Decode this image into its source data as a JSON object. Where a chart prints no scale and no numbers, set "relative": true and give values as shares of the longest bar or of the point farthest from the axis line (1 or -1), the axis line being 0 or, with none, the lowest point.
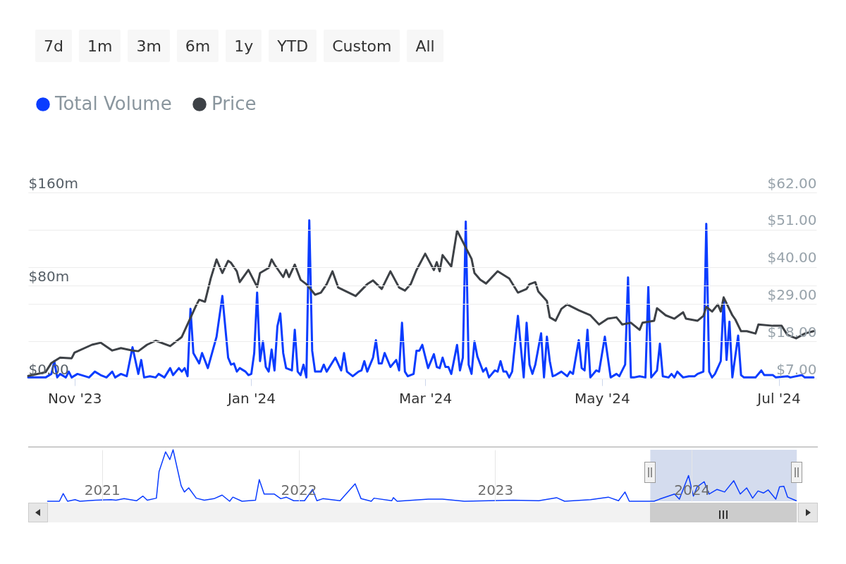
{
  "chart_data": [
    {
      "type": "line",
      "annotations": [
        "7d",
        "1m",
        "3m",
        "6m",
        "1y",
        "YTD",
        "Custom",
        "All"
      ],
      "xlim": [
        "2023-10-16",
        "2024-07-14"
      ],
      "xticks": [
        {
          "value": "2023-11-01",
          "label": "Nov '23"
        },
        {
          "value": "2024-01-01",
          "label": "Jan '24"
        },
        {
          "value": "2024-03-01",
          "label": "Mar '24"
        },
        {
          "value": "2024-05-01",
          "label": "May '24"
        },
        {
          "value": "2024-07-01",
          "label": "Jul '24"
        }
      ],
      "ylim": [
        0,
        160
      ],
      "yticks": [
        {
          "value": 0,
          "label": "$0.00"
        },
        {
          "value": 80,
          "label": "$80m"
        },
        {
          "value": 160,
          "label": "$160m"
        }
      ],
      "y2lim": [
        7,
        62
      ],
      "y2ticks": [
        {
          "value": 7,
          "label": "$7.00"
        },
        {
          "value": 18,
          "label": "$18.00"
        },
        {
          "value": 29,
          "label": "$29.00"
        },
        {
          "value": 40,
          "label": "$40.00"
        },
        {
          "value": 51,
          "label": "$51.00"
        },
        {
          "value": 62,
          "label": "$62.00"
        }
      ],
      "grid": "y",
      "legend": "top left",
      "series": [
        {
          "name": "Total Volume",
          "color": "#0a3cff",
          "x": [
            "2023-10-16",
            "2023-10-22",
            "2023-10-24",
            "2023-10-25",
            "2023-10-26",
            "2023-10-27",
            "2023-10-29",
            "2023-10-30",
            "2023-10-31",
            "2023-11-02",
            "2023-11-06",
            "2023-11-08",
            "2023-11-10",
            "2023-11-12",
            "2023-11-14",
            "2023-11-15",
            "2023-11-17",
            "2023-11-19",
            "2023-11-21",
            "2023-11-23",
            "2023-11-24",
            "2023-11-25",
            "2023-11-27",
            "2023-11-29",
            "2023-11-30",
            "2023-12-02",
            "2023-12-04",
            "2023-12-05",
            "2023-12-07",
            "2023-12-08",
            "2023-12-09",
            "2023-12-10",
            "2023-12-11",
            "2023-12-12",
            "2023-12-14",
            "2023-12-15",
            "2023-12-17",
            "2023-12-20",
            "2023-12-22",
            "2023-12-24",
            "2023-12-25",
            "2023-12-26",
            "2023-12-27",
            "2023-12-28",
            "2023-12-30",
            "2023-12-31",
            "2024-01-01",
            "2024-01-02",
            "2024-01-03",
            "2024-01-04",
            "2024-01-05",
            "2024-01-06",
            "2024-01-07",
            "2024-01-08",
            "2024-01-09",
            "2024-01-10",
            "2024-01-11",
            "2024-01-12",
            "2024-01-13",
            "2024-01-15",
            "2024-01-16",
            "2024-01-17",
            "2024-01-18",
            "2024-01-19",
            "2024-01-20",
            "2024-01-21",
            "2024-01-22",
            "2024-01-23",
            "2024-01-25",
            "2024-01-26",
            "2024-01-27",
            "2024-01-30",
            "2024-02-01",
            "2024-02-02",
            "2024-02-03",
            "2024-02-05",
            "2024-02-07",
            "2024-02-08",
            "2024-02-09",
            "2024-02-10",
            "2024-02-12",
            "2024-02-13",
            "2024-02-14",
            "2024-02-15",
            "2024-02-16",
            "2024-02-18",
            "2024-02-20",
            "2024-02-21",
            "2024-02-22",
            "2024-02-23",
            "2024-02-24",
            "2024-02-26",
            "2024-02-27",
            "2024-02-28",
            "2024-02-29",
            "2024-03-02",
            "2024-03-04",
            "2024-03-05",
            "2024-03-06",
            "2024-03-07",
            "2024-03-08",
            "2024-03-09",
            "2024-03-10",
            "2024-03-12",
            "2024-03-13",
            "2024-03-14",
            "2024-03-15",
            "2024-03-16",
            "2024-03-17",
            "2024-03-18",
            "2024-03-19",
            "2024-03-21",
            "2024-03-22",
            "2024-03-23",
            "2024-03-25",
            "2024-03-26",
            "2024-03-27",
            "2024-03-28",
            "2024-03-29",
            "2024-03-30",
            "2024-03-31",
            "2024-04-02",
            "2024-04-04",
            "2024-04-05",
            "2024-04-06",
            "2024-04-07",
            "2024-04-08",
            "2024-04-10",
            "2024-04-11",
            "2024-04-12",
            "2024-04-13",
            "2024-04-14",
            "2024-04-15",
            "2024-04-17",
            "2024-04-19",
            "2024-04-20",
            "2024-04-21",
            "2024-04-23",
            "2024-04-24",
            "2024-04-25",
            "2024-04-26",
            "2024-04-27",
            "2024-04-29",
            "2024-04-30",
            "2024-05-02",
            "2024-05-04",
            "2024-05-06",
            "2024-05-07",
            "2024-05-09",
            "2024-05-10",
            "2024-05-11",
            "2024-05-12",
            "2024-05-14",
            "2024-05-16",
            "2024-05-17",
            "2024-05-18",
            "2024-05-20",
            "2024-05-21",
            "2024-05-22",
            "2024-05-24",
            "2024-05-25",
            "2024-05-26",
            "2024-05-27",
            "2024-05-29",
            "2024-05-31",
            "2024-06-02",
            "2024-06-03",
            "2024-06-05",
            "2024-06-06",
            "2024-06-07",
            "2024-06-08",
            "2024-06-09",
            "2024-06-11",
            "2024-06-12",
            "2024-06-13",
            "2024-06-14",
            "2024-06-15",
            "2024-06-17",
            "2024-06-18",
            "2024-06-19",
            "2024-06-22",
            "2024-06-23",
            "2024-06-25",
            "2024-06-26",
            "2024-06-29",
            "2024-06-30",
            "2024-07-04",
            "2024-07-05",
            "2024-07-09",
            "2024-07-10",
            "2024-07-13"
          ],
          "values": [
            1,
            1,
            4,
            15,
            1,
            4,
            1,
            6,
            1,
            4,
            1,
            6,
            3,
            1,
            6,
            1,
            4,
            2,
            27,
            4,
            16,
            1,
            2,
            1,
            4,
            1,
            9,
            3,
            9,
            6,
            9,
            2,
            60,
            22,
            13,
            22,
            9,
            36,
            71,
            18,
            12,
            13,
            6,
            9,
            6,
            3,
            4,
            22,
            74,
            15,
            32,
            10,
            6,
            25,
            7,
            45,
            56,
            22,
            9,
            7,
            42,
            6,
            3,
            12,
            1,
            136,
            24,
            6,
            6,
            12,
            6,
            18,
            7,
            22,
            6,
            2,
            6,
            7,
            15,
            6,
            18,
            33,
            13,
            13,
            22,
            10,
            16,
            7,
            48,
            6,
            2,
            4,
            24,
            24,
            29,
            9,
            21,
            10,
            9,
            18,
            10,
            10,
            4,
            29,
            7,
            18,
            135,
            12,
            4,
            32,
            19,
            6,
            9,
            1,
            7,
            6,
            15,
            6,
            6,
            1,
            6,
            54,
            1,
            48,
            12,
            4,
            12,
            39,
            1,
            36,
            15,
            2,
            3,
            6,
            2,
            6,
            4,
            33,
            9,
            7,
            42,
            1,
            7,
            6,
            36,
            1,
            4,
            2,
            12,
            87,
            1,
            1,
            2,
            1,
            79,
            1,
            7,
            30,
            2,
            1,
            4,
            1,
            6,
            1,
            2,
            2,
            4,
            6,
            133,
            6,
            1,
            4,
            15,
            69,
            16,
            49,
            1,
            37,
            3,
            1,
            1,
            1,
            7,
            3,
            3,
            1,
            2,
            1,
            3,
            1,
            1
          ]
        },
        {
          "name": "Price",
          "color": "#3d4146",
          "axis": "y2",
          "x": [
            "2023-10-16",
            "2023-10-22",
            "2023-10-24",
            "2023-10-27",
            "2023-10-31",
            "2023-11-01",
            "2023-11-07",
            "2023-11-10",
            "2023-11-14",
            "2023-11-17",
            "2023-11-21",
            "2023-11-23",
            "2023-11-26",
            "2023-11-29",
            "2023-12-04",
            "2023-12-08",
            "2023-12-13",
            "2023-12-14",
            "2023-12-16",
            "2023-12-18",
            "2023-12-20",
            "2023-12-22",
            "2023-12-24",
            "2023-12-25",
            "2023-12-27",
            "2023-12-28",
            "2023-12-31",
            "2024-01-03",
            "2024-01-04",
            "2024-01-07",
            "2024-01-08",
            "2024-01-09",
            "2024-01-12",
            "2024-01-13",
            "2024-01-14",
            "2024-01-16",
            "2024-01-18",
            "2024-01-20",
            "2024-01-23",
            "2024-01-25",
            "2024-01-27",
            "2024-01-29",
            "2024-01-31",
            "2024-02-05",
            "2024-02-06",
            "2024-02-10",
            "2024-02-12",
            "2024-02-15",
            "2024-02-18",
            "2024-02-21",
            "2024-02-23",
            "2024-02-25",
            "2024-02-27",
            "2024-03-01",
            "2024-03-04",
            "2024-03-05",
            "2024-03-06",
            "2024-03-07",
            "2024-03-10",
            "2024-03-12",
            "2024-03-14",
            "2024-03-17",
            "2024-03-18",
            "2024-03-20",
            "2024-03-22",
            "2024-03-26",
            "2024-03-30",
            "2024-04-02",
            "2024-04-05",
            "2024-04-06",
            "2024-04-08",
            "2024-04-09",
            "2024-04-12",
            "2024-04-13",
            "2024-04-15",
            "2024-04-17",
            "2024-04-19",
            "2024-04-23",
            "2024-04-27",
            "2024-04-30",
            "2024-05-03",
            "2024-05-06",
            "2024-05-08",
            "2024-05-11",
            "2024-05-14",
            "2024-05-15",
            "2024-05-19",
            "2024-05-20",
            "2024-05-23",
            "2024-05-26",
            "2024-05-29",
            "2024-05-30",
            "2024-06-03",
            "2024-06-05",
            "2024-06-06",
            "2024-06-08",
            "2024-06-10",
            "2024-06-11",
            "2024-06-12",
            "2024-06-15",
            "2024-06-16",
            "2024-06-18",
            "2024-06-20",
            "2024-06-23",
            "2024-06-24",
            "2024-06-29",
            "2024-07-02",
            "2024-07-04",
            "2024-07-07",
            "2024-07-10",
            "2024-07-13"
          ],
          "values": [
            7.8,
            8.9,
            11.6,
            13.2,
            13.0,
            14.7,
            17.0,
            17.6,
            15.3,
            16.0,
            15.3,
            15.1,
            17.0,
            18.2,
            16.6,
            19.3,
            28.7,
            30.3,
            29.7,
            36.6,
            42.2,
            38.2,
            41.8,
            41.2,
            38.7,
            35.5,
            39.1,
            34.1,
            38.2,
            39.7,
            42.2,
            40.7,
            37.0,
            39.1,
            37.0,
            40.7,
            36.2,
            34.9,
            31.8,
            32.4,
            34.9,
            38.7,
            33.9,
            31.8,
            31.4,
            34.9,
            36.0,
            33.5,
            38.7,
            33.9,
            33.0,
            34.9,
            39.1,
            43.9,
            39.1,
            41.4,
            38.7,
            43.5,
            40.1,
            50.7,
            47.4,
            42.4,
            38.2,
            36.2,
            35.1,
            38.7,
            36.6,
            32.4,
            33.5,
            34.9,
            35.5,
            32.8,
            29.9,
            25.1,
            24.1,
            27.6,
            28.9,
            27.2,
            25.7,
            23.0,
            24.7,
            25.1,
            23.0,
            23.5,
            21.4,
            23.5,
            24.1,
            27.8,
            25.7,
            24.7,
            26.6,
            24.7,
            24.1,
            25.5,
            28.2,
            26.8,
            28.9,
            26.8,
            31.0,
            25.7,
            24.5,
            21.0,
            21.0,
            20.3,
            23.0,
            22.6,
            22.6,
            19.9,
            18.9,
            20.3,
            21.0
          ]
        }
      ]
    },
    {
      "type": "line",
      "relative": true,
      "xlim": [
        "2020-08-17",
        "2024-08-22"
      ],
      "xticks": [
        "2021",
        "2022",
        "2023",
        "2024"
      ],
      "grid": "x",
      "tick_labels": "x",
      "bands": [
        {
          "axis": "x",
          "from": "2023-10-16",
          "to": "2024-07-14",
          "color": "#ccd6eb"
        }
      ],
      "series": [
        {
          "color": "#0a3cff",
          "x": [
            "2020-09-22",
            "2020-10-14",
            "2020-10-21",
            "2020-10-29",
            "2020-11-12",
            "2020-11-21",
            "2020-12-20",
            "2021-01-18",
            "2021-01-27",
            "2021-02-11",
            "2021-03-06",
            "2021-03-18",
            "2021-03-26",
            "2021-04-12",
            "2021-04-17",
            "2021-04-29",
            "2021-05-07",
            "2021-05-13",
            "2021-05-28",
            "2021-06-03",
            "2021-06-11",
            "2021-06-25",
            "2021-07-10",
            "2021-07-28",
            "2021-08-12",
            "2021-08-26",
            "2021-09-01",
            "2021-09-18",
            "2021-10-13",
            "2021-10-20",
            "2021-10-29",
            "2021-11-17",
            "2021-11-29",
            "2021-12-09",
            "2021-12-23",
            "2022-01-12",
            "2022-01-27",
            "2022-02-04",
            "2022-02-15",
            "2022-03-19",
            "2022-04-16",
            "2022-04-27",
            "2022-05-16",
            "2022-05-21",
            "2022-06-23",
            "2022-06-26",
            "2022-07-03",
            "2022-08-30",
            "2022-09-25",
            "2022-11-05",
            "2023-02-03",
            "2023-03-23",
            "2023-04-25",
            "2023-05-10",
            "2023-06-27",
            "2023-07-30",
            "2023-08-18",
            "2023-08-30",
            "2023-09-07",
            "2023-10-23",
            "2023-11-02",
            "2023-11-30",
            "2023-12-09",
            "2023-12-26",
            "2024-01-04",
            "2024-01-11",
            "2024-01-24",
            "2024-02-02",
            "2024-02-17",
            "2024-03-02",
            "2024-03-19",
            "2024-03-31",
            "2024-04-12",
            "2024-04-23",
            "2024-05-03",
            "2024-05-13",
            "2024-05-22",
            "2024-06-05",
            "2024-06-12",
            "2024-06-20",
            "2024-06-27",
            "2024-07-13"
          ],
          "values": [
            0,
            0,
            0.15,
            0,
            0.03,
            0,
            0.02,
            0.03,
            0.02,
            0.05,
            0.01,
            0.1,
            0.02,
            0.06,
            0.58,
            0.96,
            0.81,
            1,
            0.3,
            0.18,
            0.26,
            0.06,
            0.02,
            0.05,
            0.12,
            0,
            0.08,
            0,
            0.02,
            0.42,
            0.14,
            0.14,
            0.05,
            0.08,
            0.01,
            0.01,
            0.23,
            0.01,
            0.05,
            0.01,
            0.34,
            0.05,
            0,
            0.06,
            0.01,
            0.07,
            0,
            0.04,
            0.04,
            0,
            0.02,
            0.01,
            0.07,
            0,
            0.03,
            0.08,
            0.01,
            0.18,
            0,
            0,
            0.04,
            0.14,
            0.04,
            0.5,
            0.1,
            0.28,
            0.38,
            0.14,
            0.23,
            0.18,
            0.4,
            0.14,
            0.26,
            0.06,
            0.2,
            0.16,
            0.22,
            0.04,
            0.28,
            0.29,
            0.08,
            0.01
          ]
        }
      ]
    }
  ]
}
